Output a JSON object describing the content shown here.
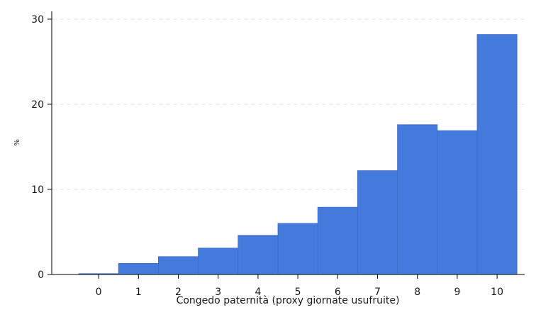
{
  "chart_data": {
    "type": "bar",
    "title": "",
    "xlabel": "Congedo paternità (proxy giornate usufruite)",
    "ylabel": "%",
    "categories": [
      "0",
      "1",
      "2",
      "3",
      "4",
      "5",
      "6",
      "7",
      "8",
      "9",
      "10"
    ],
    "values": [
      0.1,
      1.3,
      2.1,
      3.1,
      4.6,
      6.0,
      7.9,
      12.2,
      17.6,
      16.9,
      28.2
    ],
    "ylim": [
      0,
      30
    ],
    "yticks": [
      "0",
      "10",
      "20",
      "30"
    ],
    "grid": true,
    "bar_color": "#447adb",
    "bar_edge_color": "#3a6cc8"
  }
}
